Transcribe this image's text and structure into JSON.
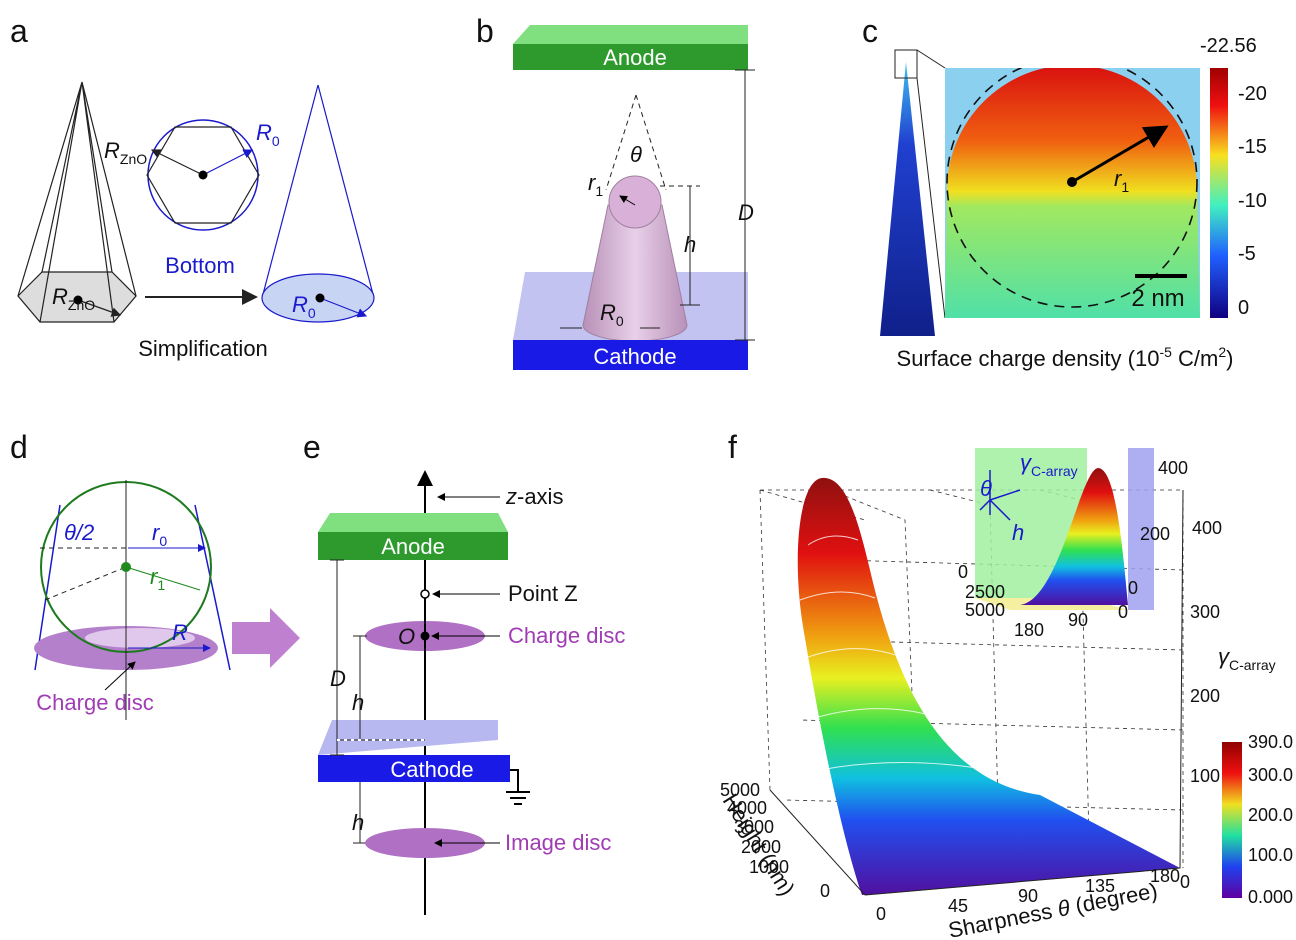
{
  "panels": {
    "a": {
      "letter": "a",
      "top_r_zno": {
        "symbol": "R",
        "sub": "ZnO"
      },
      "top_r0": {
        "symbol": "R",
        "sub": "0"
      },
      "bottom": "Bottom",
      "base_r_zno": {
        "symbol": "R",
        "sub": "ZnO"
      },
      "cone_r0": {
        "symbol": "R",
        "sub": "0"
      },
      "arrow_label": "Simplification"
    },
    "b": {
      "letter": "b",
      "anode": "Anode",
      "cathode": "Cathode",
      "theta": "θ",
      "r1": {
        "symbol": "r",
        "sub": "1"
      },
      "h": "h",
      "D": "D",
      "R0": {
        "symbol": "R",
        "sub": "0"
      }
    },
    "c": {
      "letter": "c",
      "colorbar_ticks": [
        "-22.56",
        "-20",
        "-15",
        "-10",
        "-5",
        "0"
      ],
      "r1": {
        "symbol": "r",
        "sub": "1"
      },
      "scale": "2 nm",
      "caption": {
        "prefix": "Surface charge density (10",
        "exp": "-5",
        "middle": " C/m",
        "exp2": "2",
        "suffix": ")"
      }
    },
    "d": {
      "letter": "d",
      "half_angle": "θ/2",
      "r0": {
        "symbol": "r",
        "sub": "0"
      },
      "r1": {
        "symbol": "r",
        "sub": "1"
      },
      "R": "R",
      "label": "Charge disc"
    },
    "e": {
      "letter": "e",
      "axis": "z-axis",
      "anode": "Anode",
      "point": "Point Z",
      "origin": "O",
      "charge_disc": "Charge disc",
      "D": "D",
      "h_upper": "h",
      "h_lower": "h",
      "cathode": "Cathode",
      "image_disc": "Image disc"
    },
    "f": {
      "letter": "f",
      "z_ticks": [
        "0",
        "100",
        "200",
        "300",
        "400"
      ],
      "z_label": {
        "symbol": "γ",
        "sub": "C-array"
      },
      "x_ticks": [
        "0",
        "45",
        "90",
        "135",
        "180"
      ],
      "x_label": {
        "before": "Sharpness ",
        "symbol": "θ",
        "after": " (degree)"
      },
      "y_ticks": [
        "0",
        "1000",
        "2000",
        "3000",
        "4000",
        "5000"
      ],
      "y_label": "Height (nm)",
      "colorbar_ticks": [
        "390.0",
        "300.0",
        "200.0",
        "100.0",
        "0.000"
      ],
      "inset": {
        "z_ticks": [
          "0",
          "200",
          "400"
        ],
        "y_ticks": [
          "0",
          "2500",
          "5000"
        ],
        "x_ticks": [
          "180",
          "90",
          "0"
        ],
        "theta": "θ",
        "h": "h",
        "gamma": {
          "symbol": "γ",
          "sub": "C-array"
        }
      }
    }
  }
}
